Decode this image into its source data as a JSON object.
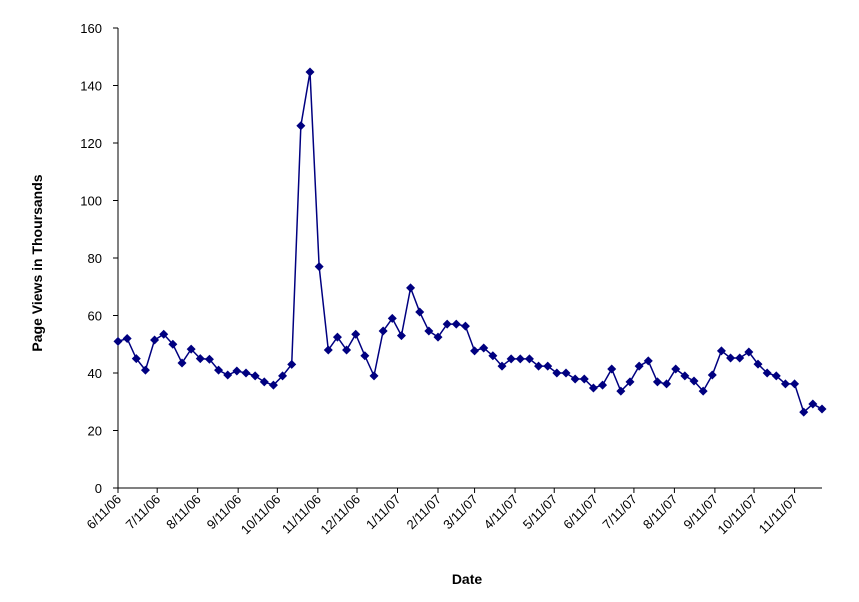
{
  "chart_data": {
    "type": "line",
    "x_label": "Date",
    "y_label": "Page Views in Thoursands",
    "x": [
      "6/11/06",
      "6/18/06",
      "6/25/06",
      "7/2/06",
      "7/9/06",
      "7/16/06",
      "7/23/06",
      "7/30/06",
      "8/6/06",
      "8/13/06",
      "8/20/06",
      "8/27/06",
      "9/3/06",
      "9/10/06",
      "9/17/06",
      "9/24/06",
      "10/1/06",
      "10/8/06",
      "10/15/06",
      "10/22/06",
      "10/29/06",
      "11/5/06",
      "11/12/06",
      "11/19/06",
      "11/26/06",
      "12/3/06",
      "12/10/06",
      "12/17/06",
      "12/24/06",
      "12/31/06",
      "1/7/07",
      "1/14/07",
      "1/21/07",
      "1/28/07",
      "2/4/07",
      "2/11/07",
      "2/18/07",
      "2/25/07",
      "3/4/07",
      "3/11/07",
      "3/18/07",
      "3/25/07",
      "4/1/07",
      "4/8/07",
      "4/15/07",
      "4/22/07",
      "4/29/07",
      "5/6/07",
      "5/13/07",
      "5/20/07",
      "5/27/07",
      "6/3/07",
      "6/10/07",
      "6/17/07",
      "6/24/07",
      "7/1/07",
      "7/8/07",
      "7/15/07",
      "7/22/07",
      "7/29/07",
      "8/5/07",
      "8/12/07",
      "8/19/07",
      "8/26/07",
      "9/2/07",
      "9/9/07",
      "9/16/07",
      "9/23/07",
      "9/30/07",
      "10/7/07",
      "10/14/07",
      "10/21/07",
      "10/28/07",
      "11/4/07",
      "11/11/07",
      "11/18/07",
      "11/25/07",
      "12/2/07"
    ],
    "series": [
      {
        "name": "Page Views",
        "color": "#000080",
        "values": [
          51,
          52,
          45,
          41,
          51.5,
          53.5,
          50,
          43.5,
          48.3,
          45,
          44.8,
          41,
          39.3,
          40.7,
          40,
          39,
          36.9,
          35.8,
          39,
          43,
          126,
          144.7,
          77,
          48,
          52.5,
          48,
          53.5,
          46,
          39,
          54.6,
          59,
          53,
          69.6,
          61.2,
          54.6,
          52.5,
          57,
          57,
          56.3,
          47.7,
          48.7,
          46,
          42.4,
          44.9,
          44.9,
          44.9,
          42.4,
          42.4,
          40,
          40,
          37.9,
          37.9,
          34.8,
          35.8,
          41.4,
          33.7,
          36.9,
          42.4,
          44.2,
          36.9,
          36.2,
          41.4,
          39,
          37.2,
          33.7,
          39.3,
          47.7,
          45.2,
          45.2,
          47.3,
          43.1,
          40,
          39,
          36.2,
          36.2,
          26.4,
          29.2,
          27.5
        ]
      }
    ],
    "xlim": [
      "6/11/06",
      "12/2/07"
    ],
    "xticks": [
      "6/11/06",
      "7/11/06",
      "8/11/06",
      "9/11/06",
      "10/11/06",
      "11/11/06",
      "12/11/06",
      "1/11/07",
      "2/11/07",
      "3/11/07",
      "4/11/07",
      "5/11/07",
      "6/11/07",
      "7/11/07",
      "8/11/07",
      "9/11/07",
      "10/11/07",
      "11/11/07"
    ],
    "ylim": [
      0,
      160
    ],
    "yticks": [
      0,
      20,
      40,
      60,
      80,
      100,
      120,
      140,
      160
    ],
    "grid": false
  }
}
